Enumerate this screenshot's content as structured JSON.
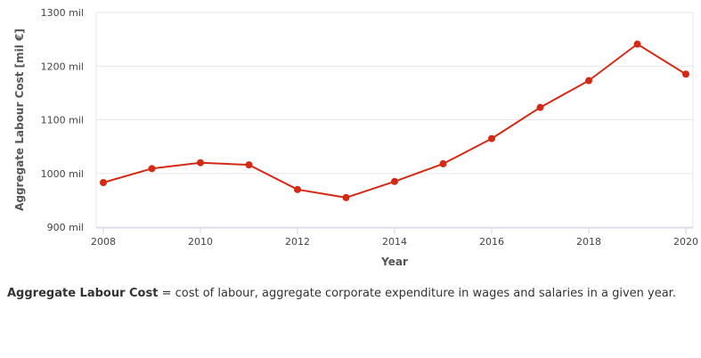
{
  "chart_data": {
    "type": "line",
    "xlabel": "Year",
    "ylabel": "Aggregate Labour Cost [mil €]",
    "x_ticks": [
      "2008",
      "2010",
      "2012",
      "2014",
      "2016",
      "2018",
      "2020"
    ],
    "y_ticks": [
      "900 mil",
      "1000 mil",
      "1100 mil",
      "1200 mil",
      "1300 mil"
    ],
    "xlim": [
      2008,
      2020
    ],
    "ylim": [
      900,
      1300
    ],
    "grid": true,
    "colors": {
      "line": "#d42a15",
      "grid": "#e6e6e6",
      "axis": "#ccd6eb"
    },
    "series": [
      {
        "x": [
          2008,
          2009,
          2010,
          2011,
          2012,
          2013,
          2014,
          2015,
          2016,
          2017,
          2018,
          2019,
          2020
        ],
        "values": [
          983,
          1009,
          1020,
          1016,
          970,
          955,
          985,
          1018,
          1065,
          1123,
          1173,
          1241,
          1185
        ]
      }
    ]
  },
  "footnote": {
    "term": "Aggregate Labour Cost",
    "definition": " = cost of labour, aggregate corporate expenditure in wages and salaries in a given year."
  }
}
